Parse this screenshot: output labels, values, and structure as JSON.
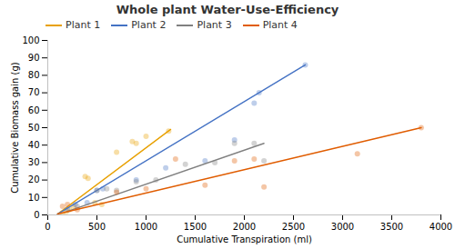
{
  "chart_data": {
    "type": "scatter",
    "title": "Whole plant Water-Use-Efficiency",
    "xlabel": "Cumulative Transpiration (ml)",
    "ylabel": "Cumulative Biomass gain (g)",
    "xlim": [
      0,
      4000
    ],
    "ylim": [
      0,
      100
    ],
    "xticks": [
      0,
      500,
      1000,
      1500,
      2000,
      2500,
      3000,
      3500,
      4000
    ],
    "yticks": [
      0,
      10,
      20,
      30,
      40,
      50,
      60,
      70,
      80,
      90,
      100
    ],
    "grid": false,
    "legend": "upper left",
    "series": [
      {
        "name": "Plant 1",
        "color": "#E8A000",
        "x": [
          150,
          190,
          220,
          260,
          380,
          410,
          480,
          550,
          700,
          860,
          900,
          1000,
          1230
        ],
        "values": [
          1,
          2,
          3,
          5,
          22,
          21,
          7,
          6,
          36,
          42,
          41,
          45,
          48
        ],
        "fit": {
          "x": [
            100,
            1250
          ],
          "values": [
            0.5,
            49
          ]
        }
      },
      {
        "name": "Plant 2",
        "color": "#4472C4",
        "x": [
          200,
          280,
          400,
          500,
          560,
          900,
          1200,
          1600,
          1900,
          2100,
          2150,
          2620
        ],
        "values": [
          3,
          6,
          7,
          14,
          15,
          20,
          27,
          31,
          43,
          64,
          70,
          86
        ],
        "fit": {
          "x": [
            100,
            2620
          ],
          "values": [
            0.5,
            86
          ]
        }
      },
      {
        "name": "Plant 3",
        "color": "#808080",
        "x": [
          300,
          500,
          600,
          700,
          900,
          1100,
          1400,
          1700,
          1900,
          2100,
          2200
        ],
        "values": [
          5,
          14,
          15,
          14,
          19,
          20,
          29,
          30,
          41,
          41,
          31
        ],
        "fit": {
          "x": [
            200,
            2200
          ],
          "values": [
            2,
            41
          ]
        }
      },
      {
        "name": "Plant 4",
        "color": "#E05C00",
        "x": [
          150,
          200,
          300,
          700,
          1000,
          1300,
          1600,
          1900,
          2100,
          2200,
          3150,
          3800
        ],
        "values": [
          5,
          6,
          3,
          13,
          15,
          32,
          17,
          31,
          32,
          16,
          35,
          50
        ],
        "fit": {
          "x": [
            100,
            3800
          ],
          "values": [
            0.5,
            50
          ]
        }
      }
    ]
  }
}
